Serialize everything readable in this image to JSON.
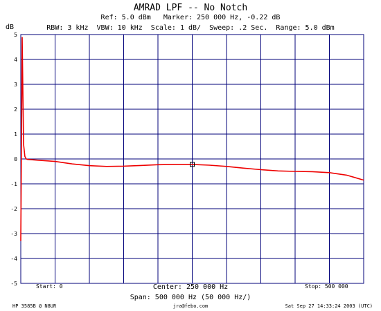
{
  "header": {
    "title": "AMRAD LPF -- No Notch",
    "line1": "Ref: 5.0 dBm   Marker: 250 000 Hz, -0.22 dB",
    "line2": "RBW: 3 kHz  VBW: 10 kHz  Scale: 1 dB/  Sweep: .2 Sec.  Range: 5.0 dBm"
  },
  "footer": {
    "start": "Start: 0",
    "center": "Center: 250 000 Hz",
    "stop": "Stop: 500 000",
    "span": "Span: 500 000 Hz (50 000 Hz/)",
    "instrument": "HP 3585B @ N8UR",
    "email": "jra@febo.com",
    "timestamp": "Sat Sep 27 14:33:24 2003 (UTC)"
  },
  "chart_data": {
    "type": "line",
    "ylabel": "dB",
    "ylim": [
      -5,
      5
    ],
    "xlim": [
      0,
      500000
    ],
    "yticks": [
      "5",
      "4",
      "3",
      "2",
      "1",
      "0",
      "-1",
      "-2",
      "-3",
      "-4",
      "-5"
    ],
    "grid": true,
    "line_color": "#ee0000",
    "grid_color": "#00007a",
    "marker": {
      "x": 250000,
      "y": -0.22
    },
    "series": [
      {
        "x": [
          0,
          2000,
          4000,
          6000,
          8000,
          10000,
          25000,
          50000,
          75000,
          100000,
          125000,
          150000,
          175000,
          200000,
          225000,
          250000,
          275000,
          300000,
          325000,
          350000,
          375000,
          400000,
          425000,
          450000,
          475000,
          500000
        ],
        "y": [
          -3.3,
          4.9,
          0.6,
          0.1,
          0.0,
          -0.02,
          -0.05,
          -0.1,
          -0.2,
          -0.27,
          -0.3,
          -0.29,
          -0.26,
          -0.23,
          -0.22,
          -0.22,
          -0.25,
          -0.3,
          -0.37,
          -0.43,
          -0.48,
          -0.5,
          -0.51,
          -0.55,
          -0.65,
          -0.85
        ]
      }
    ]
  }
}
